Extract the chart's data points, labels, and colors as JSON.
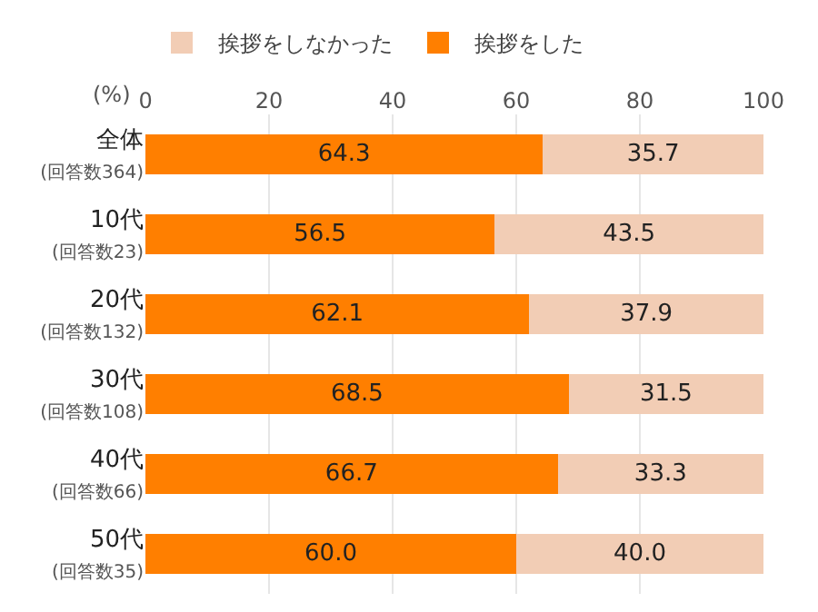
{
  "chart_data": {
    "type": "bar",
    "orientation": "horizontal",
    "stacked": true,
    "xlabel": "(%)",
    "categories": [
      "全体\n(回答数364)",
      "10代\n(回答数23)",
      "20代\n(回答数132)",
      "30代\n(回答数108)",
      "40代\n(回答数66)",
      "50代\n(回答数35)"
    ],
    "series": [
      {
        "name": "挨拶をした",
        "color": "#ff7f00",
        "values": [
          64.3,
          56.5,
          62.1,
          68.5,
          66.7,
          60.0
        ],
        "value_labels": [
          "64.3",
          "56.5",
          "62.1",
          "68.5",
          "66.7",
          "60.0"
        ]
      },
      {
        "name": "挨拶をしなかった",
        "color": "#f2cdb5",
        "values": [
          35.7,
          43.5,
          37.9,
          31.5,
          33.3,
          40.0
        ],
        "value_labels": [
          "35.7",
          "43.5",
          "37.9",
          "31.5",
          "33.3",
          "40.0"
        ]
      }
    ],
    "xlim": [
      0,
      100
    ],
    "xticks": [
      0,
      20,
      40,
      60,
      80,
      100
    ],
    "grid": "x",
    "legend": "top left"
  }
}
